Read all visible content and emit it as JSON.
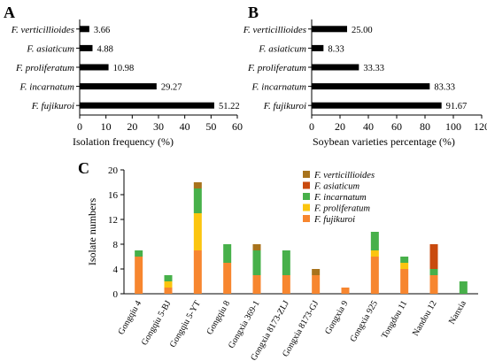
{
  "panels": {
    "A": "A",
    "B": "B",
    "C": "C"
  },
  "chart_data": [
    {
      "type": "bar",
      "orientation": "horizontal",
      "panel": "A",
      "categories": [
        "F. verticillioides",
        "F. asiaticum",
        "F. proliferatum",
        "F. incarnatum",
        "F. fujikuroi"
      ],
      "values": [
        3.66,
        4.88,
        10.98,
        29.27,
        51.22
      ],
      "value_labels": [
        "3.66",
        "4.88",
        "10.98",
        "29.27",
        "51.22"
      ],
      "xlabel": "Isolation frequency (%)",
      "xlim": [
        0,
        60
      ],
      "xticks": [
        "0",
        "10",
        "20",
        "30",
        "40",
        "50",
        "60"
      ],
      "bar_color": "#000000"
    },
    {
      "type": "bar",
      "orientation": "horizontal",
      "panel": "B",
      "categories": [
        "F. verticillioides",
        "F. asiaticum",
        "F. proliferatum",
        "F. incarnatum",
        "F. fujikuroi"
      ],
      "values": [
        25.0,
        8.33,
        33.33,
        83.33,
        91.67
      ],
      "value_labels": [
        "25.00",
        "8.33",
        "33.33",
        "83.33",
        "91.67"
      ],
      "xlabel": "Soybean varieties percentage (%)",
      "xlim": [
        0,
        120
      ],
      "xticks": [
        "0",
        "20",
        "40",
        "60",
        "80",
        "100",
        "120"
      ],
      "bar_color": "#000000"
    },
    {
      "type": "bar",
      "stacked": true,
      "panel": "C",
      "categories": [
        "Gongqiu 4",
        "Gongqiu 5-BJ",
        "Gongqiu 5-YT",
        "Gongqiu 8",
        "Gongxia 369-1",
        "Gongxia 8173-ZLJ",
        "Gongxia 8173-GJ",
        "Gongxia 9",
        "Gongxia 925",
        "Tongdou 11",
        "Nandou 12",
        "Nanxia"
      ],
      "ylabel": "Isolate numbers",
      "ylim": [
        0,
        20
      ],
      "yticks": [
        "0",
        "4",
        "8",
        "12",
        "16",
        "20"
      ],
      "legend": [
        "F. verticillioides",
        "F. asiaticum",
        "F. incarnatum",
        "F. proliferatum",
        "F. fujikuroi"
      ],
      "legend_position": "top-right",
      "series": [
        {
          "name": "F. fujikuroi",
          "color": "#f7862f",
          "values": [
            6,
            1,
            7,
            5,
            3,
            3,
            3,
            1,
            6,
            4,
            3,
            0
          ]
        },
        {
          "name": "F. proliferatum",
          "color": "#fbc50f",
          "values": [
            0,
            1,
            6,
            0,
            0,
            0,
            0,
            0,
            1,
            1,
            0,
            0
          ]
        },
        {
          "name": "F. incarnatum",
          "color": "#47b04a",
          "values": [
            1,
            1,
            4,
            3,
            4,
            4,
            0,
            0,
            3,
            1,
            1,
            2
          ]
        },
        {
          "name": "F. asiaticum",
          "color": "#c94a0e",
          "values": [
            0,
            0,
            0,
            0,
            0,
            0,
            0,
            0,
            0,
            0,
            4,
            0
          ]
        },
        {
          "name": "F. verticillioides",
          "color": "#a8731c",
          "values": [
            0,
            0,
            1,
            0,
            1,
            0,
            1,
            0,
            0,
            0,
            0,
            0
          ]
        }
      ]
    }
  ]
}
